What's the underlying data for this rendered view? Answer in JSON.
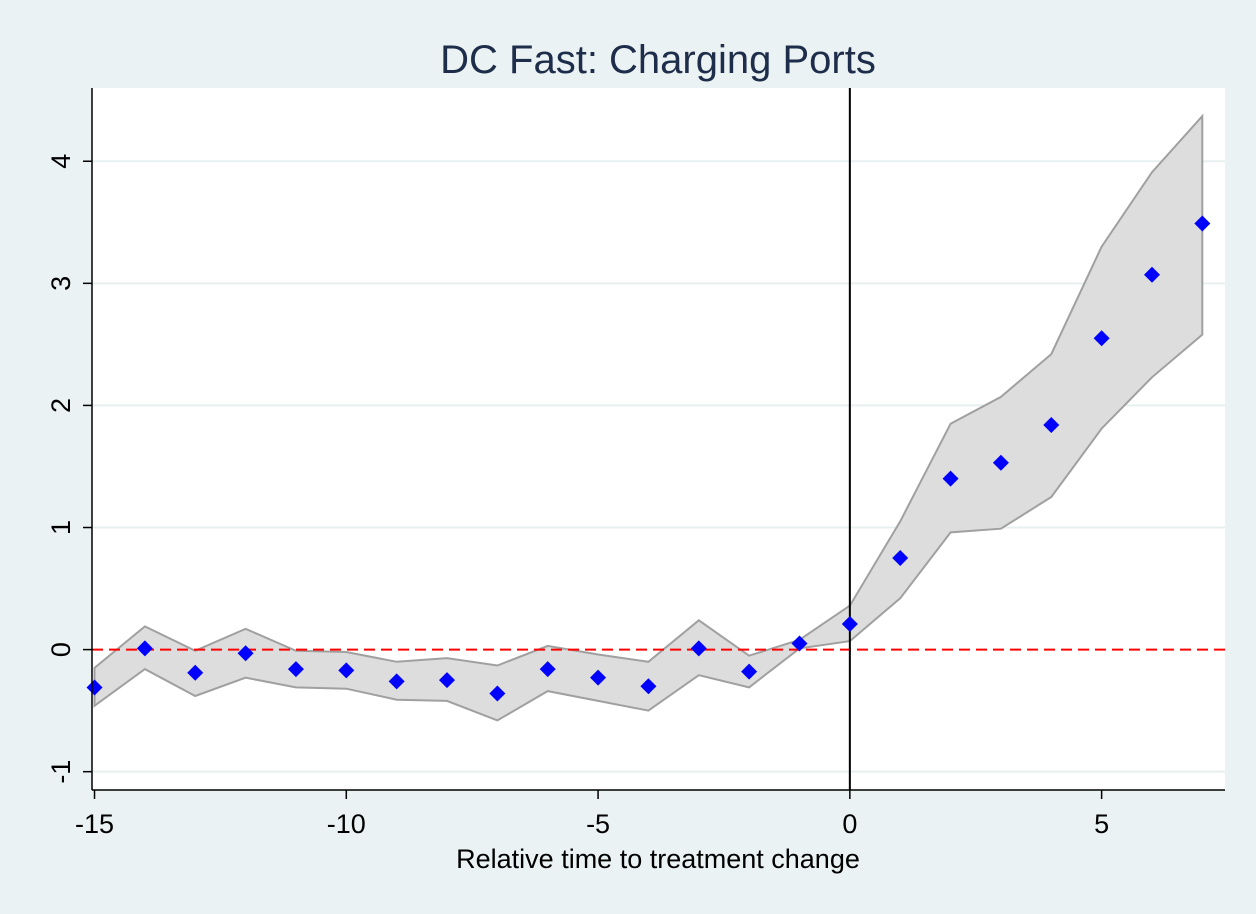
{
  "chart_data": {
    "type": "scatter",
    "title": "DC Fast: Charging Ports",
    "xlabel": "Relative time to treatment change",
    "ylabel": "",
    "xlim": [
      -15.05,
      7.45
    ],
    "ylim": [
      -1.15,
      4.6
    ],
    "xticks": [
      -15,
      -10,
      -5,
      0,
      5
    ],
    "xtick_labels": [
      "-15",
      "-10",
      "-5",
      "0",
      "5"
    ],
    "yticks": [
      -1,
      0,
      1,
      2,
      3,
      4
    ],
    "ytick_labels": [
      "-1",
      "0",
      "1",
      "2",
      "3",
      "4"
    ],
    "grid": "horizontal",
    "reference_lines": {
      "horizontal_y": 0,
      "horizontal_style": "dashed",
      "horizontal_color": "#ff0000",
      "vertical_x": 0,
      "vertical_color": "#000000"
    },
    "x": [
      -15,
      -14,
      -13,
      -12,
      -11,
      -10,
      -9,
      -8,
      -7,
      -6,
      -5,
      -4,
      -3,
      -2,
      -1,
      0,
      1,
      2,
      3,
      4,
      5,
      6,
      7
    ],
    "y": [
      -0.31,
      0.01,
      -0.19,
      -0.03,
      -0.16,
      -0.17,
      -0.26,
      -0.25,
      -0.36,
      -0.16,
      -0.23,
      -0.3,
      0.01,
      -0.18,
      0.05,
      0.21,
      0.75,
      1.4,
      1.53,
      1.84,
      2.55,
      3.07,
      3.49
    ],
    "ci_upper": [
      -0.15,
      0.19,
      -0.01,
      0.17,
      -0.01,
      -0.02,
      -0.1,
      -0.07,
      -0.13,
      0.03,
      -0.04,
      -0.1,
      0.24,
      -0.05,
      0.08,
      0.36,
      1.05,
      1.85,
      2.07,
      2.42,
      3.3,
      3.91,
      4.37
    ],
    "ci_lower": [
      -0.46,
      -0.16,
      -0.38,
      -0.23,
      -0.31,
      -0.32,
      -0.41,
      -0.42,
      -0.58,
      -0.34,
      -0.42,
      -0.5,
      -0.21,
      -0.31,
      0.01,
      0.07,
      0.42,
      0.96,
      0.99,
      1.25,
      1.81,
      2.23,
      2.58
    ],
    "colors": {
      "marker": "#0000ff",
      "band_fill": "#dddddd",
      "band_edge": "#a0a0a0",
      "zero_line": "#ff0000",
      "treatment_line": "#000000",
      "plot_bg": "#ffffff",
      "outer_bg": "#eaf2f3",
      "grid": "#e8eff1",
      "title": "#1e2d4a"
    },
    "marker_shape": "diamond"
  }
}
